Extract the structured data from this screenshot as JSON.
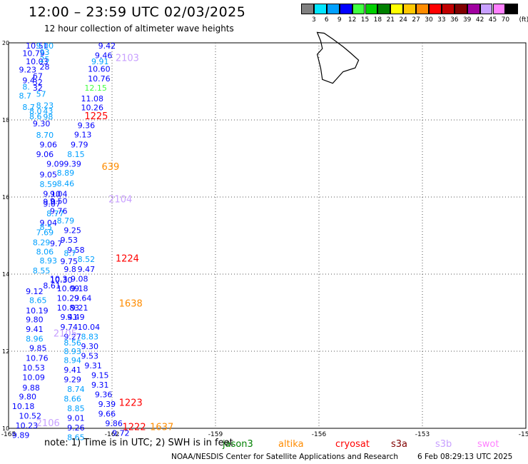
{
  "header": {
    "title": "12:00 – 23:59 UTC 02/03/2025",
    "subtitle": "12 hour collection of altimeter wave heights"
  },
  "legend": {
    "unit": "(ft)",
    "bins": [
      {
        "label": "3",
        "color": "#808080"
      },
      {
        "label": "6",
        "color": "#00e5ff"
      },
      {
        "label": "9",
        "color": "#00a0ff"
      },
      {
        "label": "12",
        "color": "#0000ff"
      },
      {
        "label": "15",
        "color": "#40ff40"
      },
      {
        "label": "18",
        "color": "#00d000"
      },
      {
        "label": "21",
        "color": "#008000"
      },
      {
        "label": "24",
        "color": "#ffff00"
      },
      {
        "label": "27",
        "color": "#ffc800"
      },
      {
        "label": "30",
        "color": "#ff8c00"
      },
      {
        "label": "33",
        "color": "#ff0000"
      },
      {
        "label": "36",
        "color": "#c00000"
      },
      {
        "label": "39",
        "color": "#800000"
      },
      {
        "label": "42",
        "color": "#a000a0"
      },
      {
        "label": "45",
        "color": "#c8a0ff"
      },
      {
        "label": "70",
        "color": "#ff80ff"
      },
      {
        "label": "",
        "color": "#000000"
      }
    ]
  },
  "note": {
    "text": "note: 1) Time is in UTC; 2) SWH is in feet",
    "satellites": [
      {
        "name": "jason3",
        "color": "#008000"
      },
      {
        "name": "altika",
        "color": "#ff8c00"
      },
      {
        "name": "cryosat",
        "color": "#ff0000"
      },
      {
        "name": "s3a",
        "color": "#800000"
      },
      {
        "name": "s3b",
        "color": "#c8a0ff"
      },
      {
        "name": "swot",
        "color": "#ff80ff"
      }
    ]
  },
  "footer": {
    "credit": "NOAA/NESDIS Center for Satellite Applications and Research",
    "timestamp": "6 Feb 08:29:13 UTC 2025"
  },
  "chart_data": {
    "type": "scatter",
    "title": "12:00 – 23:59 UTC 02/03/2025",
    "subtitle": "12 hour collection of altimeter wave heights",
    "xlim": [
      -165,
      -150
    ],
    "ylim": [
      10,
      20
    ],
    "x_ticks": [
      "-165",
      "-162",
      "-159",
      "-156",
      "-153",
      "-150"
    ],
    "y_ticks": [
      "10",
      "12",
      "14",
      "16",
      "18",
      "20"
    ],
    "grid": true,
    "coastline": "Island of Hawaii (Big Island) near -156 W, 19.5 N",
    "track_ids": [
      {
        "label": "2103",
        "lon": -161.9,
        "lat": 19.62,
        "color": "#c8a0ff"
      },
      {
        "label": "1225",
        "lon": -162.8,
        "lat": 18.11,
        "color": "#ff0000"
      },
      {
        "label": "639",
        "lon": -162.3,
        "lat": 16.8,
        "color": "#ff8c00"
      },
      {
        "label": "2104",
        "lon": -162.1,
        "lat": 15.95,
        "color": "#c8a0ff"
      },
      {
        "label": "1224",
        "lon": -161.9,
        "lat": 14.42,
        "color": "#ff0000"
      },
      {
        "label": "1638",
        "lon": -161.8,
        "lat": 13.25,
        "color": "#ff8c00"
      },
      {
        "label": "2105",
        "lon": -163.7,
        "lat": 12.47,
        "color": "#c8a0ff"
      },
      {
        "label": "2106",
        "lon": -164.2,
        "lat": 10.15,
        "color": "#c8a0ff"
      },
      {
        "label": "1223",
        "lon": -161.8,
        "lat": 10.68,
        "color": "#ff0000"
      },
      {
        "label": "1222",
        "lon": -161.7,
        "lat": 10.05,
        "color": "#ff0000"
      },
      {
        "label": "1637",
        "lon": -160.9,
        "lat": 10.05,
        "color": "#ff8c00"
      }
    ],
    "series": [
      {
        "values": [
          {
            "lon": -164.5,
            "lat": 19.93,
            "v": "10.51",
            "c": "#0000ff"
          },
          {
            "lon": -164.2,
            "lat": 19.93,
            "v": "9.00",
            "c": "#00a0ff"
          },
          {
            "lon": -164.6,
            "lat": 19.73,
            "v": "10.79",
            "c": "#0000ff"
          },
          {
            "lon": -164.1,
            "lat": 19.76,
            "v": "93",
            "c": "#00a0ff"
          },
          {
            "lon": -164.5,
            "lat": 19.52,
            "v": "10.03",
            "c": "#0000ff"
          },
          {
            "lon": -164.1,
            "lat": 19.57,
            "v": "25",
            "c": "#00a0ff"
          },
          {
            "lon": -164.1,
            "lat": 19.38,
            "v": "28",
            "c": "#0000ff"
          },
          {
            "lon": -164.7,
            "lat": 19.31,
            "v": "9.23",
            "c": "#0000ff"
          },
          {
            "lon": -164.3,
            "lat": 19.14,
            "v": "67",
            "c": "#0000ff"
          },
          {
            "lon": -164.6,
            "lat": 19.03,
            "v": "9.4",
            "c": "#0000ff"
          },
          {
            "lon": -164.3,
            "lat": 18.98,
            "v": "32",
            "c": "#0000ff"
          },
          {
            "lon": -164.6,
            "lat": 18.86,
            "v": "8.",
            "c": "#00a0ff"
          },
          {
            "lon": -164.3,
            "lat": 18.83,
            "v": "32",
            "c": "#0000ff"
          },
          {
            "lon": -164.7,
            "lat": 18.63,
            "v": "8.7",
            "c": "#00a0ff"
          },
          {
            "lon": -164.2,
            "lat": 18.68,
            "v": "57",
            "c": "#00a0ff"
          },
          {
            "lon": -164.6,
            "lat": 18.33,
            "v": "8.7",
            "c": "#00a0ff"
          },
          {
            "lon": -164.2,
            "lat": 18.38,
            "v": "8.23",
            "c": "#00a0ff"
          },
          {
            "lon": -164.4,
            "lat": 18.23,
            "v": "8.0",
            "c": "#00a0ff"
          },
          {
            "lon": -164.0,
            "lat": 18.23,
            "v": "43",
            "c": "#00a0ff"
          },
          {
            "lon": -164.4,
            "lat": 18.09,
            "v": "8.6",
            "c": "#00a0ff"
          },
          {
            "lon": -164.0,
            "lat": 18.08,
            "v": "98",
            "c": "#00a0ff"
          },
          {
            "lon": -164.3,
            "lat": 17.91,
            "v": "9.30",
            "c": "#0000ff"
          },
          {
            "lon": -164.2,
            "lat": 17.61,
            "v": "8.70",
            "c": "#00a0ff"
          },
          {
            "lon": -164.1,
            "lat": 17.36,
            "v": "9.06",
            "c": "#0000ff"
          },
          {
            "lon": -164.2,
            "lat": 17.11,
            "v": "9.06",
            "c": "#0000ff"
          },
          {
            "lon": -163.9,
            "lat": 16.86,
            "v": "9.09",
            "c": "#0000ff"
          },
          {
            "lon": -164.1,
            "lat": 16.58,
            "v": "9.05",
            "c": "#0000ff"
          },
          {
            "lon": -164.1,
            "lat": 16.33,
            "v": "8.59",
            "c": "#00a0ff"
          },
          {
            "lon": -164.0,
            "lat": 16.08,
            "v": "9.10",
            "c": "#0000ff"
          },
          {
            "lon": -164.0,
            "lat": 15.82,
            "v": "9.07",
            "c": "#0000ff"
          },
          {
            "lon": -163.9,
            "lat": 15.57,
            "v": "8.77",
            "c": "#00a0ff"
          },
          {
            "lon": -164.1,
            "lat": 15.33,
            "v": "9.04",
            "c": "#0000ff"
          },
          {
            "lon": -164.2,
            "lat": 15.08,
            "v": "7.69",
            "c": "#00a0ff"
          },
          {
            "lon": -164.3,
            "lat": 14.82,
            "v": "8.29",
            "c": "#00a0ff"
          },
          {
            "lon": -164.2,
            "lat": 14.58,
            "v": "8.06",
            "c": "#00a0ff"
          },
          {
            "lon": -164.1,
            "lat": 14.35,
            "v": "8.93",
            "c": "#00a0ff"
          },
          {
            "lon": -164.3,
            "lat": 14.09,
            "v": "8.55",
            "c": "#00a0ff"
          },
          {
            "lon": -163.8,
            "lat": 13.85,
            "v": "10.30",
            "c": "#0000ff"
          },
          {
            "lon": -164.0,
            "lat": 13.7,
            "v": "8.61",
            "c": "#0000ff"
          },
          {
            "lon": -164.5,
            "lat": 13.56,
            "v": "9.12",
            "c": "#0000ff"
          },
          {
            "lon": -164.4,
            "lat": 13.32,
            "v": "8.65",
            "c": "#00a0ff"
          },
          {
            "lon": -164.5,
            "lat": 13.06,
            "v": "10.19",
            "c": "#0000ff"
          },
          {
            "lon": -164.5,
            "lat": 12.82,
            "v": "9.80",
            "c": "#0000ff"
          },
          {
            "lon": -164.5,
            "lat": 12.57,
            "v": "9.41",
            "c": "#0000ff"
          },
          {
            "lon": -164.5,
            "lat": 12.32,
            "v": "8.96",
            "c": "#00a0ff"
          },
          {
            "lon": -164.4,
            "lat": 12.08,
            "v": "9.85",
            "c": "#0000ff"
          },
          {
            "lon": -164.5,
            "lat": 11.82,
            "v": "10.76",
            "c": "#0000ff"
          },
          {
            "lon": -164.6,
            "lat": 11.57,
            "v": "10.53",
            "c": "#0000ff"
          },
          {
            "lon": -164.6,
            "lat": 11.32,
            "v": "10.09",
            "c": "#0000ff"
          },
          {
            "lon": -164.6,
            "lat": 11.06,
            "v": "9.88",
            "c": "#0000ff"
          },
          {
            "lon": -164.7,
            "lat": 10.82,
            "v": "9.80",
            "c": "#0000ff"
          },
          {
            "lon": -164.9,
            "lat": 10.57,
            "v": "10.18",
            "c": "#0000ff"
          },
          {
            "lon": -164.7,
            "lat": 10.32,
            "v": "10.52",
            "c": "#0000ff"
          },
          {
            "lon": -164.8,
            "lat": 10.07,
            "v": "10.23",
            "c": "#0000ff"
          },
          {
            "lon": -164.9,
            "lat": 9.82,
            "v": "9.89",
            "c": "#0000ff"
          },
          {
            "lon": -162.4,
            "lat": 19.93,
            "v": "9.42",
            "c": "#0000ff"
          },
          {
            "lon": -162.5,
            "lat": 19.68,
            "v": "9.46",
            "c": "#0000ff"
          },
          {
            "lon": -162.6,
            "lat": 19.52,
            "v": "9.91",
            "c": "#00a0ff"
          },
          {
            "lon": -162.7,
            "lat": 19.32,
            "v": "10.60",
            "c": "#0000ff"
          },
          {
            "lon": -162.7,
            "lat": 19.07,
            "v": "10.76",
            "c": "#0000ff"
          },
          {
            "lon": -162.8,
            "lat": 18.83,
            "v": "12.15",
            "c": "#40ff40"
          },
          {
            "lon": -162.9,
            "lat": 18.56,
            "v": "11.08",
            "c": "#0000ff"
          },
          {
            "lon": -162.9,
            "lat": 18.32,
            "v": "10.26",
            "c": "#0000ff"
          },
          {
            "lon": -163.0,
            "lat": 17.86,
            "v": "9.36",
            "c": "#0000ff"
          },
          {
            "lon": -163.1,
            "lat": 17.62,
            "v": "9.13",
            "c": "#0000ff"
          },
          {
            "lon": -163.2,
            "lat": 17.36,
            "v": "9.79",
            "c": "#0000ff"
          },
          {
            "lon": -163.3,
            "lat": 17.11,
            "v": "8.15",
            "c": "#00a0ff"
          },
          {
            "lon": -163.4,
            "lat": 16.86,
            "v": "9.39",
            "c": "#0000ff"
          },
          {
            "lon": -163.6,
            "lat": 16.63,
            "v": "8.89",
            "c": "#00a0ff"
          },
          {
            "lon": -163.6,
            "lat": 16.35,
            "v": "8.46",
            "c": "#00a0ff"
          },
          {
            "lon": -163.8,
            "lat": 16.08,
            "v": "9.04",
            "c": "#0000ff"
          },
          {
            "lon": -163.8,
            "lat": 15.9,
            "v": "9.50",
            "c": "#0000ff"
          },
          {
            "lon": -163.8,
            "lat": 15.64,
            "v": "9.76",
            "c": "#0000ff"
          },
          {
            "lon": -163.6,
            "lat": 15.39,
            "v": "8.79",
            "c": "#00a0ff"
          },
          {
            "lon": -163.4,
            "lat": 15.14,
            "v": "9.25",
            "c": "#0000ff"
          },
          {
            "lon": -163.5,
            "lat": 14.89,
            "v": "9.53",
            "c": "#0000ff"
          },
          {
            "lon": -163.3,
            "lat": 14.63,
            "v": "9.58",
            "c": "#0000ff"
          },
          {
            "lon": -163.0,
            "lat": 14.39,
            "v": "8.52",
            "c": "#00a0ff"
          },
          {
            "lon": -163.0,
            "lat": 14.13,
            "v": "9.47",
            "c": "#0000ff"
          },
          {
            "lon": -163.2,
            "lat": 13.88,
            "v": "9.08",
            "c": "#0000ff"
          },
          {
            "lon": -163.2,
            "lat": 13.63,
            "v": "9.18",
            "c": "#0000ff"
          },
          {
            "lon": -163.1,
            "lat": 13.38,
            "v": "9.64",
            "c": "#0000ff"
          },
          {
            "lon": -163.2,
            "lat": 13.13,
            "v": "9.21",
            "c": "#0000ff"
          },
          {
            "lon": -163.3,
            "lat": 12.89,
            "v": "9.49",
            "c": "#0000ff"
          },
          {
            "lon": -163.0,
            "lat": 12.63,
            "v": "10.04",
            "c": "#0000ff"
          },
          {
            "lon": -162.9,
            "lat": 12.38,
            "v": "8.83",
            "c": "#00a0ff"
          },
          {
            "lon": -162.9,
            "lat": 12.13,
            "v": "9.30",
            "c": "#0000ff"
          },
          {
            "lon": -162.9,
            "lat": 11.88,
            "v": "9.53",
            "c": "#0000ff"
          },
          {
            "lon": -162.8,
            "lat": 11.63,
            "v": "9.31",
            "c": "#0000ff"
          },
          {
            "lon": -162.6,
            "lat": 11.38,
            "v": "9.15",
            "c": "#0000ff"
          },
          {
            "lon": -162.6,
            "lat": 11.13,
            "v": "9.31",
            "c": "#0000ff"
          },
          {
            "lon": -162.5,
            "lat": 10.88,
            "v": "9.36",
            "c": "#0000ff"
          },
          {
            "lon": -162.4,
            "lat": 10.63,
            "v": "9.39",
            "c": "#0000ff"
          },
          {
            "lon": -162.4,
            "lat": 10.38,
            "v": "9.66",
            "c": "#0000ff"
          },
          {
            "lon": -162.2,
            "lat": 10.13,
            "v": "9.86",
            "c": "#0000ff"
          },
          {
            "lon": -162.0,
            "lat": 9.88,
            "v": "9.72",
            "c": "#0000ff"
          },
          {
            "lon": -163.8,
            "lat": 13.88,
            "v": "10.3",
            "c": "#0000ff"
          },
          {
            "lon": -163.6,
            "lat": 13.63,
            "v": "10.09",
            "c": "#0000ff"
          },
          {
            "lon": -163.6,
            "lat": 13.38,
            "v": "10.29",
            "c": "#0000ff"
          },
          {
            "lon": -163.6,
            "lat": 13.13,
            "v": "10.83",
            "c": "#0000ff"
          },
          {
            "lon": -163.5,
            "lat": 12.89,
            "v": "9.41",
            "c": "#0000ff"
          },
          {
            "lon": -163.5,
            "lat": 12.63,
            "v": "9.74",
            "c": "#0000ff"
          },
          {
            "lon": -163.4,
            "lat": 12.38,
            "v": "9.27",
            "c": "#0000ff"
          },
          {
            "lon": -163.4,
            "lat": 12.22,
            "v": "8.56",
            "c": "#00a0ff"
          },
          {
            "lon": -163.4,
            "lat": 12.0,
            "v": "8.93",
            "c": "#00a0ff"
          },
          {
            "lon": -163.4,
            "lat": 11.77,
            "v": "8.94",
            "c": "#00a0ff"
          },
          {
            "lon": -163.4,
            "lat": 11.52,
            "v": "9.41",
            "c": "#0000ff"
          },
          {
            "lon": -163.4,
            "lat": 11.27,
            "v": "9.29",
            "c": "#0000ff"
          },
          {
            "lon": -163.3,
            "lat": 11.02,
            "v": "8.74",
            "c": "#00a0ff"
          },
          {
            "lon": -163.4,
            "lat": 10.77,
            "v": "8.66",
            "c": "#00a0ff"
          },
          {
            "lon": -163.3,
            "lat": 10.52,
            "v": "8.85",
            "c": "#00a0ff"
          },
          {
            "lon": -163.3,
            "lat": 10.27,
            "v": "9.01",
            "c": "#0000ff"
          },
          {
            "lon": -163.3,
            "lat": 10.02,
            "v": "9.26",
            "c": "#0000ff"
          },
          {
            "lon": -163.3,
            "lat": 9.77,
            "v": "8.65",
            "c": "#00a0ff"
          },
          {
            "lon": -164.0,
            "lat": 15.88,
            "v": "9.0",
            "c": "#0000ff"
          },
          {
            "lon": -164.1,
            "lat": 15.22,
            "v": "8.5",
            "c": "#00a0ff"
          },
          {
            "lon": -163.8,
            "lat": 14.8,
            "v": "9.7",
            "c": "#0000ff"
          },
          {
            "lon": -163.5,
            "lat": 14.33,
            "v": "9.75",
            "c": "#0000ff"
          },
          {
            "lon": -163.4,
            "lat": 14.13,
            "v": "9.8",
            "c": "#0000ff"
          },
          {
            "lon": -163.4,
            "lat": 14.55,
            "v": "8.7",
            "c": "#00a0ff"
          }
        ]
      }
    ]
  }
}
